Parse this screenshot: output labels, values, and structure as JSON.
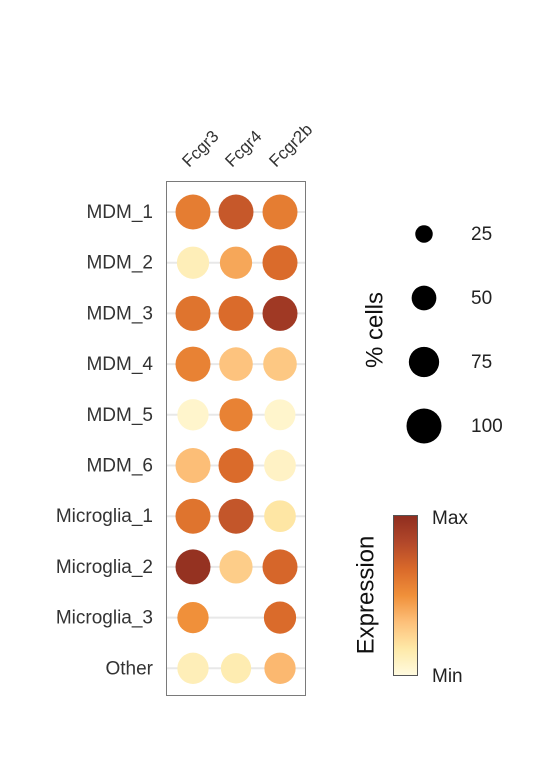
{
  "chart_data": {
    "type": "dotplot",
    "title": "",
    "rows": [
      "MDM_1",
      "MDM_2",
      "MDM_3",
      "MDM_4",
      "MDM_5",
      "MDM_6",
      "Microglia_1",
      "Microglia_2",
      "Microglia_3",
      "Other"
    ],
    "columns": [
      "Fcgr3",
      "Fcgr4",
      "Fcgr2b"
    ],
    "expression_scaled": [
      [
        0.58,
        0.75,
        0.58
      ],
      [
        0.12,
        0.42,
        0.66
      ],
      [
        0.62,
        0.66,
        0.92
      ],
      [
        0.56,
        0.32,
        0.3
      ],
      [
        0.06,
        0.56,
        0.06
      ],
      [
        0.34,
        0.66,
        0.08
      ],
      [
        0.62,
        0.76,
        0.18
      ],
      [
        0.97,
        0.28,
        0.68
      ],
      [
        0.5,
        0.0,
        0.66
      ],
      [
        0.12,
        0.14,
        0.36
      ]
    ],
    "pct_cells": [
      [
        100,
        100,
        100
      ],
      [
        85,
        85,
        100
      ],
      [
        100,
        100,
        100
      ],
      [
        100,
        92,
        92
      ],
      [
        80,
        90,
        78
      ],
      [
        100,
        100,
        82
      ],
      [
        100,
        100,
        82
      ],
      [
        100,
        90,
        100
      ],
      [
        80,
        0,
        85
      ],
      [
        80,
        75,
        80
      ]
    ],
    "size_legend": {
      "title": "% cells",
      "values": [
        25,
        50,
        75,
        100
      ],
      "labels": [
        "25",
        "50",
        "75",
        "100"
      ]
    },
    "color_legend": {
      "title": "Expression",
      "max_label": "Max",
      "min_label": "Min",
      "colors": [
        "#fffbe0",
        "#fee9a8",
        "#fdc07a",
        "#f0903a",
        "#d9692a",
        "#b2472a",
        "#8f2d1f"
      ]
    },
    "styles": {
      "panel_border": "#7a7a7a",
      "guide_line": "#e8e8e8",
      "legend_dot": "#000000"
    }
  }
}
